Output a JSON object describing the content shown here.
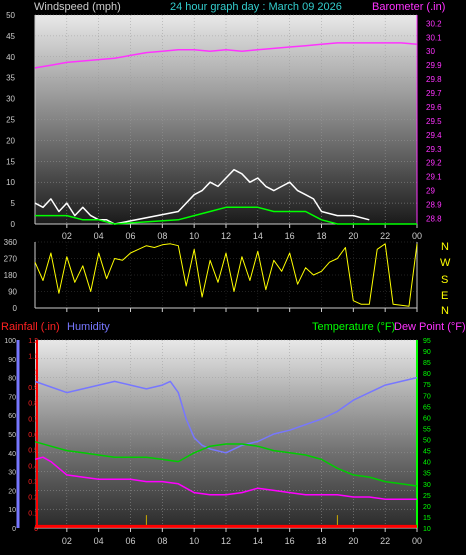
{
  "header": {
    "windspeed_label": "Windspeed (mph)",
    "title": "24 hour graph day : March 09 2026",
    "barometer_label": "Barometer (.in)"
  },
  "compass_labels": [
    "N",
    "W",
    "S",
    "E",
    "N"
  ],
  "lower_header": {
    "rainfall_label": "Rainfall (.in)",
    "humidity_label": "Humidity",
    "temperature_label": "Temperature (°F)",
    "dewpoint_label": "Dew Point (°F)"
  },
  "hour_labels": [
    "02",
    "04",
    "06",
    "08",
    "10",
    "12",
    "14",
    "16",
    "18",
    "20",
    "22",
    "00"
  ],
  "colors": {
    "windspeed": "#ffffff",
    "windspeed_avg": "#00ff00",
    "barometer": "#ff33ff",
    "direction": "#ffff00",
    "humidity": "#7777ff",
    "temperature": "#00cc00",
    "dewpoint": "#ff00ff",
    "rainfall": "#ff0000",
    "label_left": "#cccccc",
    "label_title": "#33cccc",
    "label_rain": "#ff2222",
    "label_temp": "#00ff00",
    "label_dew": "#ff33ff"
  },
  "chart_data": [
    {
      "type": "line",
      "panel": "wind-barometer",
      "x_unit": "hour",
      "left_axis": {
        "ylim": [
          0,
          50
        ],
        "ticks": [
          0,
          5,
          10,
          15,
          20,
          25,
          30,
          35,
          40,
          45,
          50
        ]
      },
      "right_axis": {
        "ylim": [
          28.76,
          30.26
        ],
        "ticks": [
          "28.8",
          "28.9",
          "29",
          "29.1",
          "29.2",
          "29.3",
          "29.4",
          "29.5",
          "29.6",
          "29.7",
          "29.8",
          "29.9",
          "30",
          "30.1",
          "30.2"
        ]
      },
      "series": [
        {
          "name": "Barometer",
          "axis": "right",
          "x": [
            0,
            1,
            2,
            3,
            4,
            5,
            6,
            7,
            8,
            9,
            10,
            11,
            12,
            13,
            14,
            15,
            16,
            17,
            18,
            19,
            20,
            21,
            22,
            23,
            24
          ],
          "values": [
            29.88,
            29.9,
            29.92,
            29.93,
            29.94,
            29.95,
            29.97,
            29.99,
            30.0,
            30.01,
            30.01,
            30.0,
            30.01,
            30.0,
            30.01,
            30.02,
            30.03,
            30.04,
            30.05,
            30.06,
            30.06,
            30.06,
            30.06,
            30.06,
            30.05
          ]
        },
        {
          "name": "Windspeed",
          "axis": "left",
          "x": [
            0,
            0.5,
            1,
            1.5,
            2,
            2.5,
            3,
            3.5,
            4,
            4.5,
            5,
            9,
            9.5,
            10,
            10.5,
            11,
            11.5,
            12,
            12.5,
            13,
            13.5,
            14,
            14.5,
            15,
            15.5,
            16,
            16.5,
            17,
            17.5,
            18,
            19,
            20,
            21
          ],
          "values": [
            5,
            4,
            6,
            3,
            5,
            2,
            4,
            2,
            1,
            1,
            0,
            3,
            5,
            7,
            8,
            10,
            9,
            11,
            13,
            12,
            10,
            11,
            9,
            8,
            9,
            10,
            8,
            7,
            6,
            3,
            2,
            2,
            1
          ]
        },
        {
          "name": "Windspeed Avg",
          "axis": "left",
          "x": [
            0,
            1,
            2,
            3,
            4,
            5,
            9,
            10,
            11,
            12,
            13,
            14,
            15,
            16,
            17,
            18,
            19,
            24
          ],
          "values": [
            2,
            2,
            2,
            1,
            1,
            0,
            1,
            2,
            3,
            4,
            4,
            4,
            3,
            3,
            3,
            1,
            0,
            0
          ]
        }
      ]
    },
    {
      "type": "line",
      "panel": "wind-direction",
      "x_unit": "hour",
      "ylim": [
        0,
        360
      ],
      "ticks": [
        0,
        90,
        180,
        270,
        360
      ],
      "series": [
        {
          "name": "Direction",
          "x": [
            0,
            0.5,
            1,
            1.5,
            2,
            2.5,
            3,
            3.5,
            4,
            4.5,
            5,
            5.5,
            6,
            6.5,
            7,
            7.5,
            8,
            8.5,
            9,
            9.5,
            10,
            10.5,
            11,
            11.5,
            12,
            12.5,
            13,
            13.5,
            14,
            14.5,
            15,
            15.5,
            16,
            16.5,
            17,
            17.5,
            18,
            18.5,
            19,
            19.5,
            20,
            20.5,
            21,
            21.5,
            22,
            22.5,
            23,
            23.5,
            24
          ],
          "values": [
            250,
            150,
            300,
            80,
            280,
            140,
            230,
            90,
            300,
            160,
            270,
            260,
            300,
            320,
            340,
            330,
            345,
            350,
            340,
            120,
            320,
            60,
            260,
            140,
            300,
            90,
            280,
            150,
            310,
            100,
            260,
            200,
            300,
            130,
            220,
            180,
            200,
            250,
            270,
            330,
            40,
            20,
            20,
            320,
            350,
            20,
            15,
            10,
            350
          ]
        }
      ]
    },
    {
      "type": "line",
      "panel": "humidity-temperature",
      "x_unit": "hour",
      "left_axis": {
        "name": "Humidity",
        "ylim": [
          0,
          100
        ],
        "ticks": [
          0,
          10,
          20,
          30,
          40,
          50,
          60,
          70,
          80,
          90,
          100
        ]
      },
      "rain_axis": {
        "name": "Rainfall",
        "ylim": [
          0,
          1.2
        ],
        "ticks": [
          "0",
          "0.1",
          "0.2",
          "0.3",
          "0.4",
          "0.5",
          "0.6",
          "0.7",
          "0.8",
          "0.9",
          "1",
          "1.1",
          "1.2"
        ]
      },
      "right_axis": {
        "ylim": [
          10,
          95
        ],
        "ticks": [
          10,
          15,
          20,
          25,
          30,
          35,
          40,
          45,
          50,
          55,
          60,
          65,
          70,
          75,
          80,
          85,
          90,
          95
        ]
      },
      "series": [
        {
          "name": "Humidity",
          "axis": "left",
          "x": [
            0,
            1,
            2,
            3,
            4,
            5,
            6,
            7,
            8,
            8.5,
            9,
            9.5,
            10,
            10.5,
            11,
            12,
            13,
            14,
            15,
            16,
            17,
            18,
            19,
            20,
            21,
            22,
            23,
            24
          ],
          "values": [
            78,
            75,
            72,
            74,
            76,
            78,
            76,
            74,
            76,
            78,
            72,
            58,
            48,
            44,
            42,
            40,
            44,
            46,
            50,
            52,
            55,
            58,
            62,
            68,
            72,
            76,
            78,
            80
          ]
        },
        {
          "name": "Temperature",
          "axis": "right",
          "x": [
            0,
            1,
            2,
            3,
            4,
            5,
            6,
            7,
            8,
            9,
            10,
            11,
            12,
            13,
            14,
            15,
            16,
            17,
            18,
            19,
            20,
            21,
            22,
            23,
            24
          ],
          "values": [
            49,
            47,
            45,
            44,
            43,
            42,
            42,
            42,
            41,
            40,
            44,
            47,
            48,
            48,
            47,
            45,
            44,
            43,
            41,
            37,
            34,
            33,
            31,
            30,
            29
          ]
        },
        {
          "name": "Dew Point",
          "axis": "right",
          "x": [
            0,
            0.5,
            1,
            1.5,
            2,
            3,
            4,
            5,
            6,
            7,
            8,
            9,
            10,
            11,
            12,
            13,
            14,
            15,
            16,
            17,
            18,
            19,
            20,
            21,
            22,
            23,
            24
          ],
          "values": [
            41,
            42,
            40,
            37,
            34,
            33,
            32,
            32,
            32,
            31,
            31,
            30,
            26,
            25,
            25,
            26,
            28,
            27,
            26,
            25,
            25,
            25,
            24,
            24,
            23,
            23,
            23
          ]
        },
        {
          "name": "Rainfall",
          "axis": "rain",
          "x": [
            0,
            7,
            7,
            7,
            19,
            19,
            19,
            24
          ],
          "values": [
            0.01,
            0.01,
            0.08,
            0.01,
            0.01,
            0.08,
            0.01,
            0.01
          ]
        }
      ]
    }
  ]
}
